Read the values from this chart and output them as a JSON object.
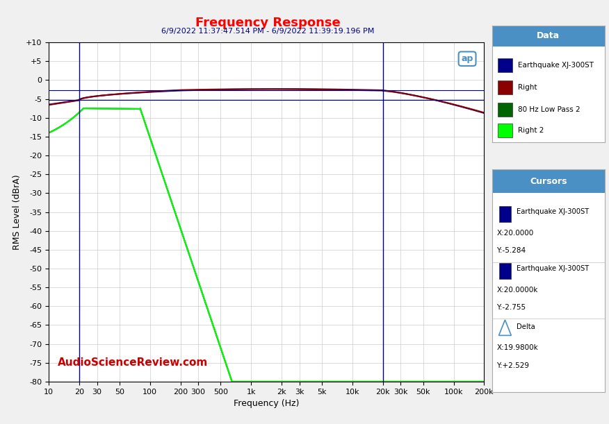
{
  "title": "Frequency Response",
  "subtitle": "6/9/2022 11:37:47.514 PM - 6/9/2022 11:39:19.196 PM",
  "xlabel": "Frequency (Hz)",
  "ylabel": "RMS Level (dBrA)",
  "xlim_log": [
    10,
    200000
  ],
  "ylim": [
    -80,
    10
  ],
  "yticks": [
    -80,
    -75,
    -70,
    -65,
    -60,
    -55,
    -50,
    -45,
    -40,
    -35,
    -30,
    -25,
    -20,
    -15,
    -10,
    -5,
    0,
    5,
    10
  ],
  "xtick_positions": [
    10,
    20,
    30,
    50,
    100,
    200,
    300,
    500,
    1000,
    2000,
    3000,
    5000,
    10000,
    20000,
    30000,
    50000,
    100000,
    200000
  ],
  "xtick_labels": [
    "10",
    "20",
    "30",
    "50",
    "100",
    "200",
    "300",
    "500",
    "1k",
    "2k",
    "3k",
    "5k",
    "10k",
    "20k",
    "30k",
    "50k",
    "100k",
    "200k"
  ],
  "bg_color": "#f0f0f0",
  "plot_bg_color": "#ffffff",
  "grid_color": "#cccccc",
  "title_color": "#ff0000",
  "subtitle_color": "#000080",
  "watermark": "AudioScienceReview.com",
  "watermark_color": "#cc0000",
  "cursor_line_x1": 20,
  "cursor_line_x2": 20000,
  "hline_y1": -2.755,
  "hline_y2": -5.284,
  "series": {
    "earthquake_left": {
      "label": "Earthquake XJ-300ST",
      "color": "#00008b",
      "linewidth": 1.5
    },
    "earthquake_right": {
      "label": "Right",
      "color": "#8b0000",
      "linewidth": 1.5
    },
    "lowpass_left": {
      "label": "80 Hz Low Pass 2",
      "color": "#006400",
      "linewidth": 1.5
    },
    "lowpass_right": {
      "label": "Right 2",
      "color": "#00ff00",
      "linewidth": 1.5
    }
  },
  "legend_data_title": "Data",
  "legend_cursors_title": "Cursors",
  "legend_header_color": "#4a90c4",
  "ap_logo_color": "#4a90c4"
}
